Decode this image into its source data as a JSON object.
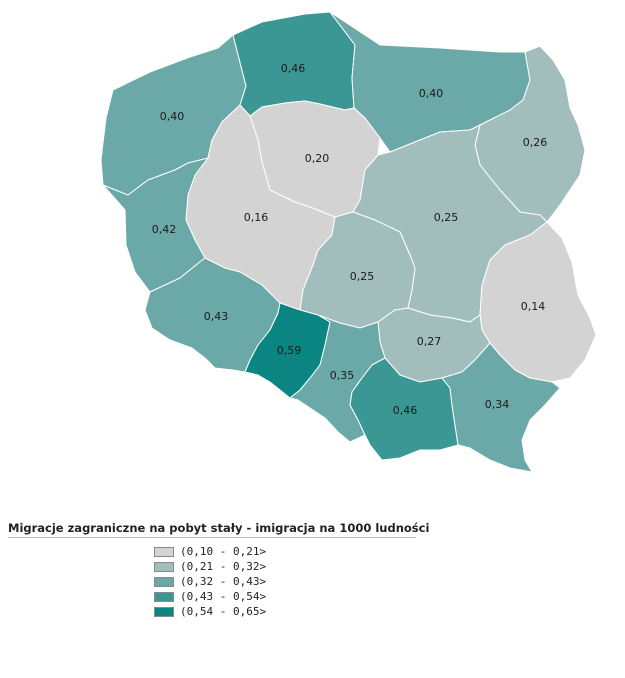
{
  "legend": {
    "title": "Migracje zagraniczne na pobyt stały - imigracja na 1000 ludności",
    "classes": [
      {
        "label": "(0,10 - 0,21>",
        "color": "#d3d3d3"
      },
      {
        "label": "(0,21 - 0,32>",
        "color": "#a1bebc"
      },
      {
        "label": "(0,32 - 0,43>",
        "color": "#6aa9a7"
      },
      {
        "label": "(0,43 - 0,54>",
        "color": "#3a9794"
      },
      {
        "label": "(0,54 - 0,65>",
        "color": "#0b8581"
      }
    ]
  },
  "regions": [
    {
      "value": "0,40",
      "class": 2
    },
    {
      "value": "0,46",
      "class": 3
    },
    {
      "value": "0,40",
      "class": 2
    },
    {
      "value": "0,26",
      "class": 1
    },
    {
      "value": "0,20",
      "class": 0
    },
    {
      "value": "0,16",
      "class": 0
    },
    {
      "value": "0,42",
      "class": 2
    },
    {
      "value": "0,25",
      "class": 1
    },
    {
      "value": "0,25",
      "class": 1
    },
    {
      "value": "0,43",
      "class": 2
    },
    {
      "value": "0,14",
      "class": 0
    },
    {
      "value": "0,27",
      "class": 1
    },
    {
      "value": "0,59",
      "class": 4
    },
    {
      "value": "0,35",
      "class": 2
    },
    {
      "value": "0,46",
      "class": 3
    },
    {
      "value": "0,34",
      "class": 2
    }
  ]
}
